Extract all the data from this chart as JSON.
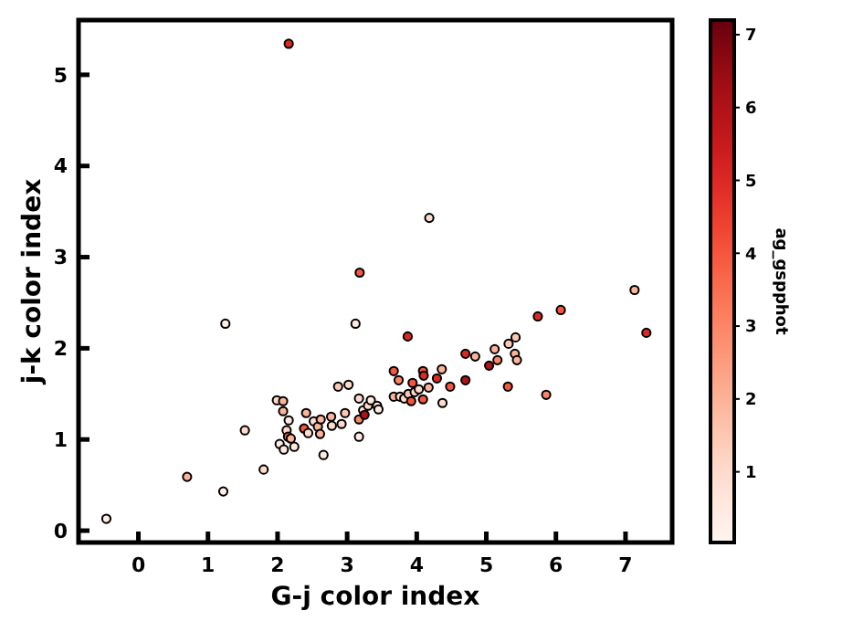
{
  "chart_data": {
    "type": "scatter",
    "xlabel": "G-j color index",
    "ylabel": "j-k color index",
    "clabel": "ag_gspphot",
    "xlim": [
      -0.86,
      7.67
    ],
    "ylim": [
      -0.13,
      5.6
    ],
    "xticks": [
      0,
      1,
      2,
      3,
      4,
      5,
      6,
      7
    ],
    "yticks": [
      0,
      1,
      2,
      3,
      4,
      5
    ],
    "clim": [
      0.03,
      7.2
    ],
    "cticks": [
      1,
      2,
      3,
      4,
      5,
      6,
      7
    ],
    "marker": "circle",
    "grid": false,
    "x": [
      -0.46,
      0.7,
      1.22,
      1.53,
      1.25,
      1.8,
      1.99,
      2.08,
      2.08,
      2.16,
      2.13,
      2.03,
      2.09,
      2.15,
      2.19,
      2.24,
      2.16,
      2.41,
      2.38,
      2.44,
      2.52,
      2.58,
      2.62,
      2.61,
      2.66,
      2.77,
      2.78,
      2.92,
      2.97,
      2.87,
      3.02,
      3.12,
      3.18,
      3.17,
      3.17,
      3.17,
      3.23,
      3.25,
      3.3,
      3.34,
      3.43,
      3.45,
      3.67,
      3.67,
      3.74,
      3.76,
      3.82,
      3.87,
      3.88,
      3.92,
      3.94,
      3.97,
      4.03,
      4.09,
      4.1,
      4.09,
      4.17,
      4.18,
      4.36,
      4.29,
      4.37,
      4.48,
      4.7,
      4.7,
      4.84,
      5.04,
      5.12,
      5.16,
      5.31,
      5.32,
      5.42,
      5.41,
      5.44,
      5.74,
      5.86,
      6.07,
      7.13,
      7.3
    ],
    "values": [
      0.13,
      0.59,
      0.43,
      1.1,
      2.27,
      0.67,
      1.43,
      1.42,
      1.31,
      1.21,
      1.1,
      0.95,
      0.89,
      1.03,
      1.01,
      0.92,
      5.34,
      1.29,
      1.12,
      1.07,
      1.2,
      1.14,
      1.22,
      1.06,
      0.83,
      1.25,
      1.15,
      1.17,
      1.29,
      1.58,
      1.6,
      2.27,
      2.83,
      1.45,
      1.22,
      1.03,
      1.32,
      1.27,
      1.37,
      1.43,
      1.37,
      1.33,
      1.47,
      1.75,
      1.65,
      1.47,
      1.45,
      2.13,
      1.5,
      1.42,
      1.62,
      1.52,
      1.55,
      1.75,
      1.7,
      1.44,
      1.57,
      3.43,
      1.77,
      1.67,
      1.4,
      1.58,
      1.94,
      1.65,
      1.91,
      1.81,
      1.99,
      1.87,
      1.58,
      2.05,
      2.12,
      1.94,
      1.87,
      2.35,
      1.49,
      2.42,
      2.64,
      2.17
    ],
    "cvalues": [
      0.3,
      2,
      0.3,
      1,
      0.3,
      1,
      1,
      2,
      2,
      0.5,
      1,
      0.5,
      0.5,
      4,
      2,
      0.5,
      5,
      2,
      4,
      1,
      1,
      2,
      2,
      2,
      0.5,
      2,
      1,
      1,
      1.5,
      1.5,
      1,
      0.5,
      4,
      1,
      3,
      0.5,
      0.5,
      6,
      1,
      0.5,
      0.5,
      0.5,
      2,
      4,
      3,
      1,
      1,
      5,
      1.5,
      4,
      4,
      1,
      1,
      4,
      5,
      4,
      2,
      1,
      2,
      5,
      1,
      4,
      5,
      6,
      2,
      6,
      2,
      3,
      4,
      1.5,
      1.5,
      2,
      2,
      5,
      3,
      4,
      2,
      5
    ]
  }
}
